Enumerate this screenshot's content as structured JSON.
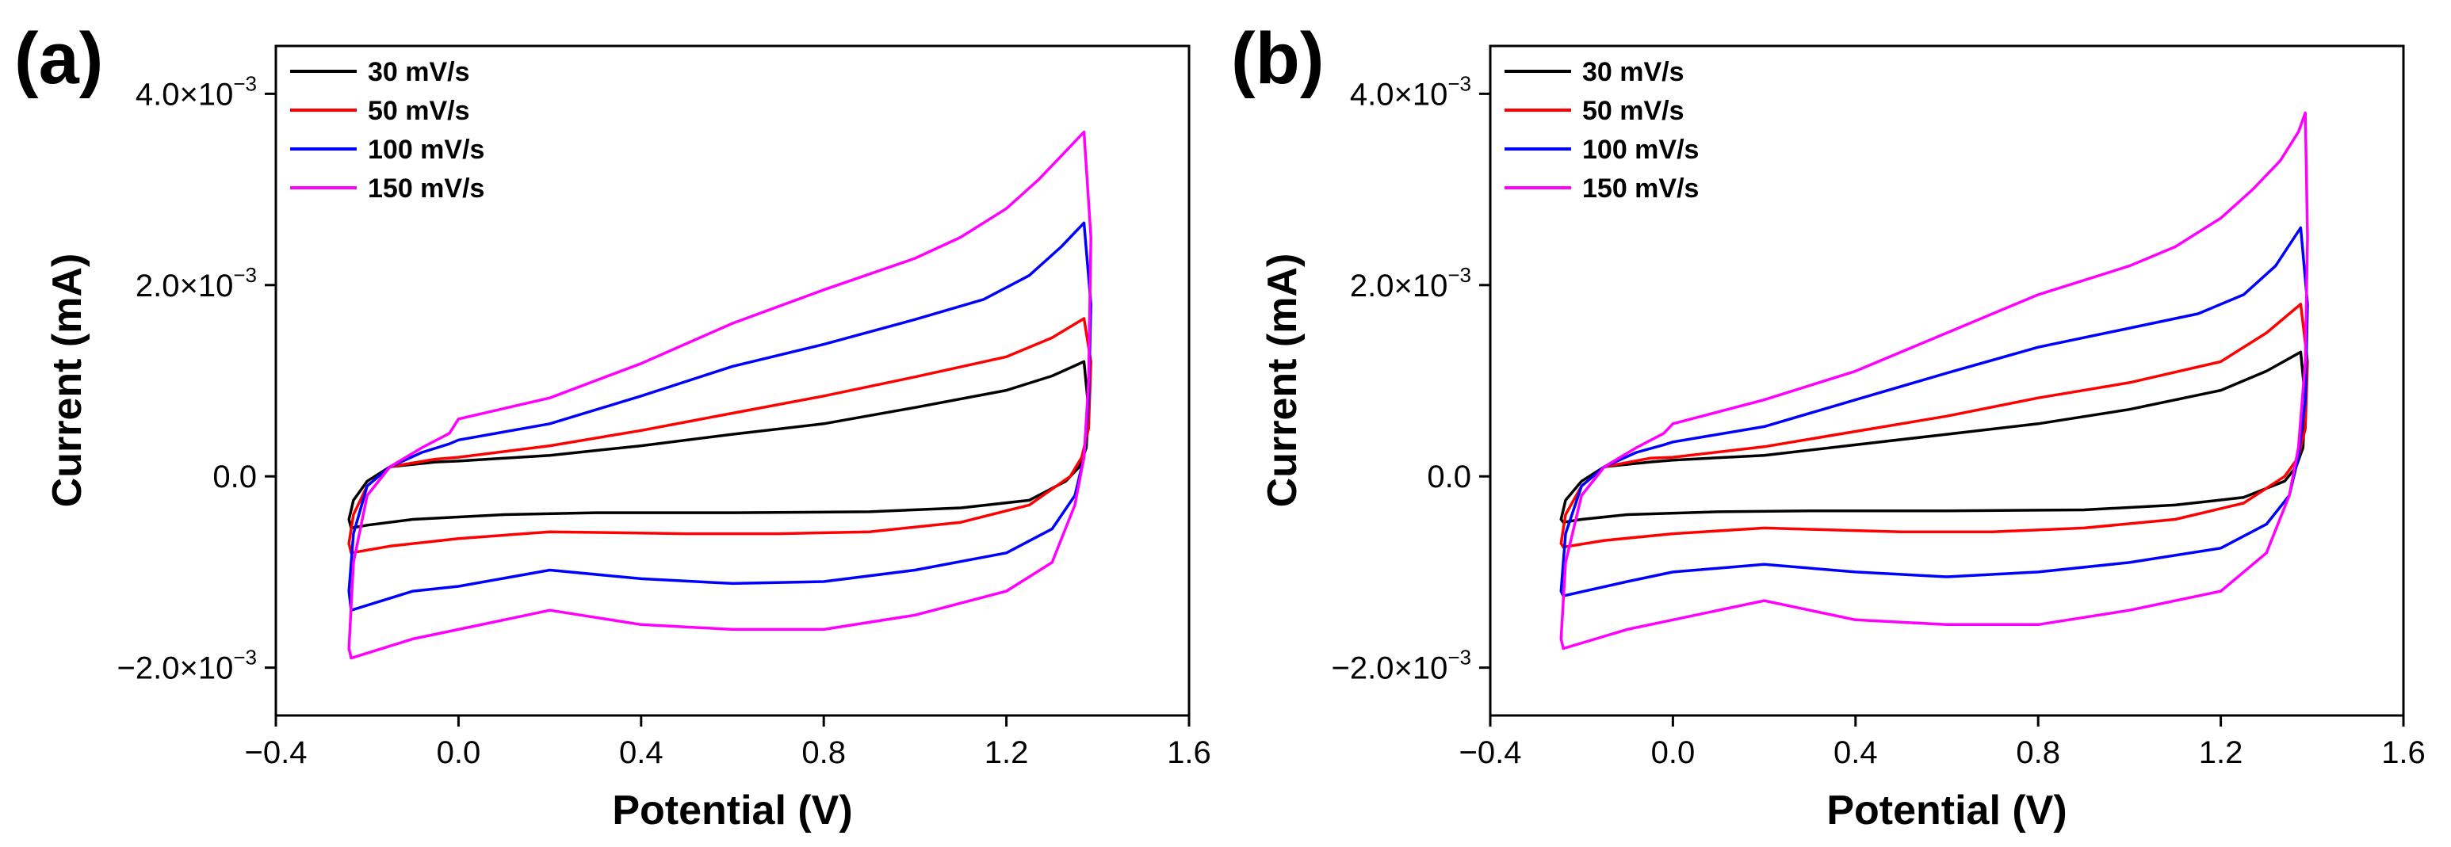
{
  "figure": {
    "background": "#ffffff"
  },
  "series_colors": {
    "30 mV/s": "#000000",
    "50 mV/s": "#ff0000",
    "100 mV/s": "#0000ff",
    "150 mV/s": "#ff00ff"
  },
  "chart_data": [
    {
      "panel_label": "(a)",
      "type": "line",
      "xlabel": "Potential (V)",
      "ylabel": "Current (mA)",
      "xlim": [
        -0.4,
        1.6
      ],
      "ylim": [
        -0.0025,
        0.0045
      ],
      "xticks": [
        -0.4,
        0.0,
        0.4,
        0.8,
        1.2,
        1.6
      ],
      "xtick_labels": [
        "−0.4",
        "0.0",
        "0.4",
        "0.8",
        "1.2",
        "1.6"
      ],
      "yticks": [
        -0.002,
        0.0,
        0.002,
        0.004
      ],
      "ytick_mantissa": [
        "−2.0×10",
        "0.0",
        "2.0×10",
        "4.0×10"
      ],
      "ytick_exponent": [
        "−3",
        "",
        "−3",
        "−3"
      ],
      "grid": false,
      "legend_position": "top-left",
      "series": [
        {
          "name": "30 mV/s",
          "color": "#000000",
          "x": [
            -0.24,
            -0.23,
            -0.2,
            -0.15,
            -0.05,
            0.0,
            0.2,
            0.4,
            0.6,
            0.8,
            1.0,
            1.2,
            1.3,
            1.37,
            1.38,
            1.375,
            1.36,
            1.33,
            1.25,
            1.1,
            0.9,
            0.6,
            0.3,
            0.1,
            -0.1,
            -0.2,
            -0.235,
            -0.24
          ],
          "y": [
            -0.00045,
            -0.00025,
            -5e-05,
            0.0001,
            0.00015,
            0.00016,
            0.00022,
            0.00032,
            0.00044,
            0.00055,
            0.00072,
            0.0009,
            0.00105,
            0.0012,
            0.0007,
            0.0003,
            0.0001,
            -5e-05,
            -0.00025,
            -0.00033,
            -0.00037,
            -0.00038,
            -0.00038,
            -0.0004,
            -0.00045,
            -0.00051,
            -0.00054,
            -0.00045
          ]
        },
        {
          "name": "50 mV/s",
          "color": "#ff0000",
          "x": [
            -0.24,
            -0.23,
            -0.2,
            -0.15,
            -0.05,
            0.0,
            0.2,
            0.4,
            0.6,
            0.8,
            1.0,
            1.2,
            1.3,
            1.37,
            1.385,
            1.38,
            1.365,
            1.34,
            1.25,
            1.1,
            0.9,
            0.7,
            0.5,
            0.2,
            0.0,
            -0.15,
            -0.235,
            -0.24
          ],
          "y": [
            -0.0007,
            -0.0004,
            -0.0001,
            0.0001,
            0.00018,
            0.0002,
            0.00032,
            0.00048,
            0.00066,
            0.00084,
            0.00104,
            0.00125,
            0.00145,
            0.00165,
            0.0012,
            0.0005,
            0.0002,
            0.0,
            -0.0003,
            -0.00048,
            -0.00058,
            -0.0006,
            -0.0006,
            -0.00058,
            -0.00065,
            -0.00073,
            -0.0008,
            -0.0007
          ]
        },
        {
          "name": "100 mV/s",
          "color": "#0000ff",
          "x": [
            -0.24,
            -0.23,
            -0.2,
            -0.15,
            -0.08,
            -0.02,
            0.0,
            0.2,
            0.4,
            0.6,
            0.8,
            1.0,
            1.15,
            1.25,
            1.32,
            1.37,
            1.385,
            1.38,
            1.37,
            1.35,
            1.3,
            1.2,
            1.0,
            0.8,
            0.6,
            0.4,
            0.2,
            0.0,
            -0.1,
            -0.235,
            -0.24
          ],
          "y": [
            -0.0012,
            -0.0006,
            -0.0001,
            0.0001,
            0.00025,
            0.00034,
            0.00038,
            0.00055,
            0.00084,
            0.00115,
            0.00138,
            0.00164,
            0.00185,
            0.0021,
            0.0024,
            0.00265,
            0.0018,
            0.0008,
            0.0002,
            -0.0002,
            -0.00055,
            -0.0008,
            -0.00098,
            -0.0011,
            -0.00112,
            -0.00107,
            -0.00098,
            -0.00115,
            -0.0012,
            -0.0014,
            -0.0012
          ]
        },
        {
          "name": "150 mV/s",
          "color": "#ff00ff",
          "x": [
            -0.24,
            -0.23,
            -0.2,
            -0.15,
            -0.08,
            -0.02,
            0.0,
            0.2,
            0.4,
            0.6,
            0.8,
            1.0,
            1.1,
            1.2,
            1.27,
            1.33,
            1.37,
            1.385,
            1.38,
            1.37,
            1.35,
            1.3,
            1.2,
            1.0,
            0.8,
            0.6,
            0.4,
            0.2,
            0.0,
            -0.1,
            -0.235,
            -0.24
          ],
          "y": [
            -0.0018,
            -0.0009,
            -0.0002,
            0.0001,
            0.0003,
            0.00045,
            0.0006,
            0.00082,
            0.00118,
            0.0016,
            0.00195,
            0.00228,
            0.0025,
            0.0028,
            0.0031,
            0.0034,
            0.0036,
            0.0025,
            0.001,
            0.0002,
            -0.0003,
            -0.0009,
            -0.0012,
            -0.00145,
            -0.0016,
            -0.0016,
            -0.00155,
            -0.0014,
            -0.0016,
            -0.0017,
            -0.0019,
            -0.0018
          ]
        }
      ]
    },
    {
      "panel_label": "(b)",
      "type": "line",
      "xlabel": "Potential (V)",
      "ylabel": "Current (mA)",
      "xlim": [
        -0.4,
        1.6
      ],
      "ylim": [
        -0.0025,
        0.0045
      ],
      "xticks": [
        -0.4,
        0.0,
        0.4,
        0.8,
        1.2,
        1.6
      ],
      "xtick_labels": [
        "−0.4",
        "0.0",
        "0.4",
        "0.8",
        "1.2",
        "1.6"
      ],
      "yticks": [
        -0.002,
        0.0,
        0.002,
        0.004
      ],
      "ytick_mantissa": [
        "−2.0×10",
        "0.0",
        "2.0×10",
        "4.0×10"
      ],
      "ytick_exponent": [
        "−3",
        "",
        "−3",
        "−3"
      ],
      "grid": false,
      "legend_position": "top-left",
      "series": [
        {
          "name": "30 mV/s",
          "color": "#000000",
          "x": [
            -0.245,
            -0.235,
            -0.2,
            -0.15,
            -0.05,
            0.0,
            0.2,
            0.4,
            0.6,
            0.8,
            1.0,
            1.2,
            1.3,
            1.375,
            1.385,
            1.38,
            1.365,
            1.34,
            1.25,
            1.1,
            0.9,
            0.6,
            0.3,
            0.1,
            -0.1,
            -0.2,
            -0.24,
            -0.245
          ],
          "y": [
            -0.00045,
            -0.00025,
            -5e-05,
            0.0001,
            0.00015,
            0.00017,
            0.00022,
            0.00033,
            0.00044,
            0.00055,
            0.0007,
            0.0009,
            0.0011,
            0.0013,
            0.0008,
            0.0003,
            0.0001,
            -5e-05,
            -0.00022,
            -0.0003,
            -0.00035,
            -0.00036,
            -0.00036,
            -0.00037,
            -0.0004,
            -0.00045,
            -0.00048,
            -0.00045
          ]
        },
        {
          "name": "50 mV/s",
          "color": "#ff0000",
          "x": [
            -0.245,
            -0.235,
            -0.2,
            -0.15,
            -0.05,
            0.0,
            0.2,
            0.4,
            0.6,
            0.8,
            1.0,
            1.2,
            1.3,
            1.375,
            1.39,
            1.385,
            1.37,
            1.34,
            1.25,
            1.1,
            0.9,
            0.7,
            0.5,
            0.2,
            0.0,
            -0.15,
            -0.24,
            -0.245
          ],
          "y": [
            -0.0007,
            -0.0004,
            -0.0001,
            0.0001,
            0.00019,
            0.0002,
            0.00031,
            0.00047,
            0.00063,
            0.00082,
            0.00098,
            0.0012,
            0.0015,
            0.0018,
            0.0012,
            0.0005,
            0.0002,
            0.0,
            -0.00028,
            -0.00045,
            -0.00054,
            -0.00058,
            -0.00058,
            -0.00054,
            -0.0006,
            -0.00067,
            -0.00074,
            -0.0007
          ]
        },
        {
          "name": "100 mV/s",
          "color": "#0000ff",
          "x": [
            -0.245,
            -0.235,
            -0.2,
            -0.15,
            -0.08,
            -0.02,
            0.0,
            0.2,
            0.4,
            0.6,
            0.8,
            1.0,
            1.15,
            1.25,
            1.32,
            1.375,
            1.39,
            1.385,
            1.37,
            1.35,
            1.3,
            1.2,
            1.0,
            0.8,
            0.6,
            0.4,
            0.2,
            0.0,
            -0.1,
            -0.24,
            -0.245
          ],
          "y": [
            -0.0012,
            -0.0006,
            -0.0001,
            0.0001,
            0.00025,
            0.00033,
            0.00036,
            0.00052,
            0.0008,
            0.00108,
            0.00135,
            0.00155,
            0.0017,
            0.0019,
            0.0022,
            0.0026,
            0.0018,
            0.0008,
            0.0002,
            -0.0002,
            -0.0005,
            -0.00075,
            -0.0009,
            -0.001,
            -0.00105,
            -0.001,
            -0.00092,
            -0.001,
            -0.0011,
            -0.00125,
            -0.0012
          ]
        },
        {
          "name": "150 mV/s",
          "color": "#ff00ff",
          "x": [
            -0.245,
            -0.235,
            -0.2,
            -0.15,
            -0.08,
            -0.02,
            0.0,
            0.2,
            0.4,
            0.6,
            0.8,
            1.0,
            1.1,
            1.2,
            1.27,
            1.33,
            1.37,
            1.385,
            1.39,
            1.385,
            1.37,
            1.35,
            1.3,
            1.2,
            1.0,
            0.8,
            0.6,
            0.4,
            0.2,
            0.0,
            -0.1,
            -0.24,
            -0.245
          ],
          "y": [
            -0.0017,
            -0.0009,
            -0.0002,
            0.0001,
            0.0003,
            0.00045,
            0.00055,
            0.0008,
            0.0011,
            0.0015,
            0.0019,
            0.0022,
            0.0024,
            0.0027,
            0.003,
            0.0033,
            0.0036,
            0.0038,
            0.0025,
            0.0012,
            0.0003,
            -0.0002,
            -0.0008,
            -0.0012,
            -0.0014,
            -0.00155,
            -0.00155,
            -0.0015,
            -0.0013,
            -0.0015,
            -0.0016,
            -0.0018,
            -0.0017
          ]
        }
      ]
    }
  ]
}
